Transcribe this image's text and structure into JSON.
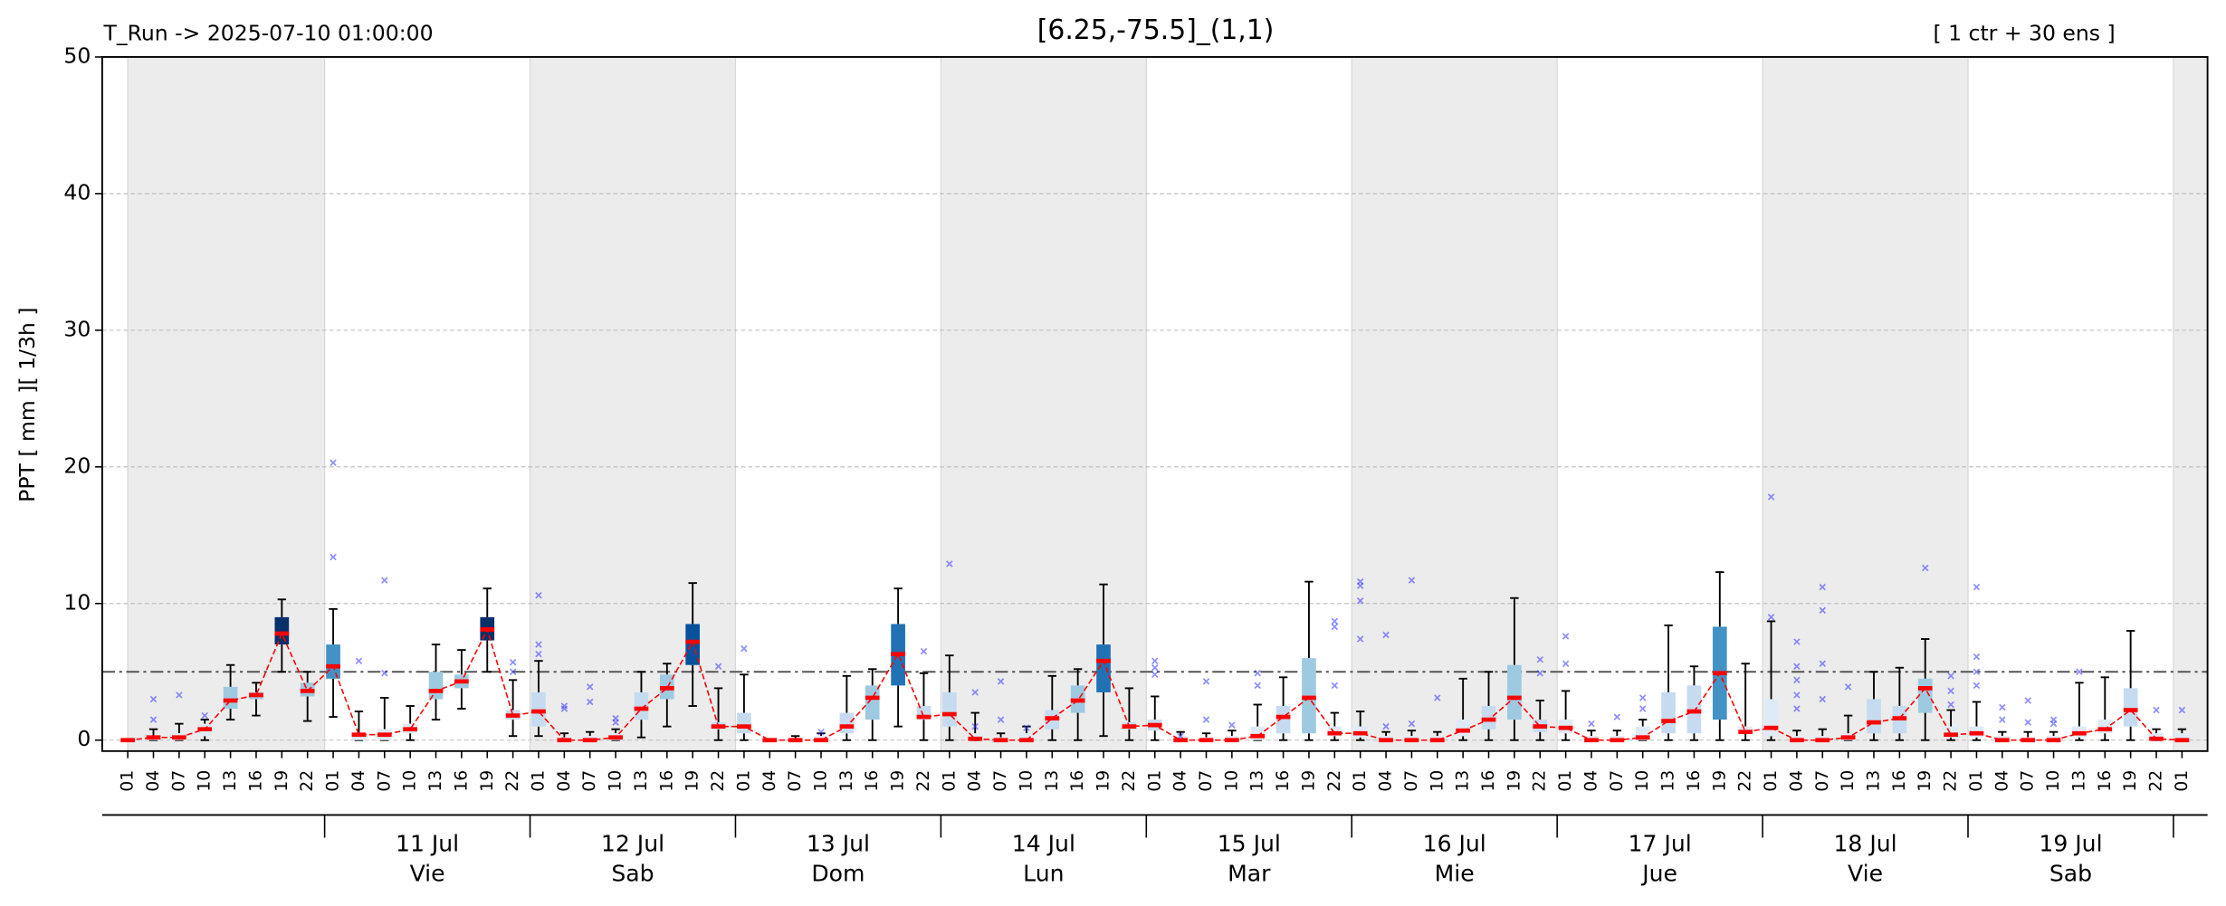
{
  "chart_data": {
    "type": "boxplot",
    "run_label": "T_Run -> 2025-07-10  01:00:00",
    "title": "[6.25,-75.5]_(1,1)",
    "members_label": "[ 1 ctr + 30 ens ]",
    "y_label": "PPT  [ mm ][ 1/3h ]",
    "ylim": [
      -0.8,
      50
    ],
    "yticks": [
      0,
      10,
      20,
      30,
      40,
      50
    ],
    "grid": true,
    "threshold": 5,
    "categories": [
      "01",
      "04",
      "07",
      "10",
      "13",
      "16",
      "19",
      "22",
      "01",
      "04",
      "07",
      "10",
      "13",
      "16",
      "19",
      "22",
      "01",
      "04",
      "07",
      "10",
      "13",
      "16",
      "19",
      "22",
      "01",
      "04",
      "07",
      "10",
      "13",
      "16",
      "19",
      "22",
      "01",
      "04",
      "07",
      "10",
      "13",
      "16",
      "19",
      "22",
      "01",
      "04",
      "07",
      "10",
      "13",
      "16",
      "19",
      "22",
      "01",
      "04",
      "07",
      "10",
      "13",
      "16",
      "19",
      "22",
      "01",
      "04",
      "07",
      "10",
      "13",
      "16",
      "19",
      "22",
      "01",
      "04",
      "07",
      "10",
      "13",
      "16",
      "19",
      "22",
      "01",
      "04",
      "07",
      "10",
      "13",
      "16",
      "19",
      "22",
      "01"
    ],
    "days": [
      null,
      {
        "date": "11 Jul",
        "weekday": "Vie"
      },
      {
        "date": "12 Jul",
        "weekday": "Sab"
      },
      {
        "date": "13 Jul",
        "weekday": "Dom"
      },
      {
        "date": "14 Jul",
        "weekday": "Lun"
      },
      {
        "date": "15 Jul",
        "weekday": "Mar"
      },
      {
        "date": "16 Jul",
        "weekday": "Mie"
      },
      {
        "date": "17 Jul",
        "weekday": "Jue"
      },
      {
        "date": "18 Jul",
        "weekday": "Vie"
      },
      {
        "date": "19 Jul",
        "weekday": "Sab"
      },
      null
    ],
    "median": [
      0,
      0.2,
      0.2,
      0.8,
      2.9,
      3.3,
      7.8,
      3.6,
      5.4,
      0.4,
      0.4,
      0.8,
      3.6,
      4.3,
      8.1,
      1.8,
      2.1,
      0,
      0,
      0.2,
      2.3,
      3.8,
      7.2,
      1,
      1,
      0,
      0,
      0,
      1,
      3.1,
      6.3,
      1.7,
      1.9,
      0.1,
      0,
      0,
      1.6,
      2.9,
      5.8,
      1,
      1.1,
      0,
      0,
      0,
      0.3,
      1.7,
      3.1,
      0.5,
      0.5,
      0,
      0,
      0,
      0.7,
      1.5,
      3.1,
      1,
      0.9,
      0,
      0,
      0.2,
      1.4,
      2.1,
      4.9,
      0.6,
      0.9,
      0,
      0,
      0.2,
      1.3,
      1.6,
      3.8,
      0.4,
      0.5,
      0,
      0,
      0,
      0.5,
      0.8,
      2.2,
      0.1,
      0
    ],
    "q1": [
      0,
      0,
      0,
      0.3,
      2.3,
      3,
      7,
      3.2,
      4.5,
      0,
      0,
      0.5,
      3,
      3.8,
      7.3,
      1.5,
      1,
      0,
      0,
      0,
      1.5,
      3,
      5.5,
      0.8,
      0.5,
      0,
      0,
      0,
      0.5,
      1.5,
      4,
      1.5,
      1,
      0,
      0,
      0,
      0.8,
      2,
      3.5,
      0.8,
      0.7,
      0,
      0,
      0,
      0,
      0.5,
      0.5,
      0.3,
      0.2,
      0,
      0,
      0,
      0.3,
      0.8,
      1.5,
      0.6,
      0.5,
      0,
      0,
      0,
      0.5,
      0.5,
      1.5,
      0.5,
      0.3,
      0,
      0,
      0,
      0.5,
      0.5,
      2,
      0.2,
      0.2,
      0,
      0,
      0,
      0.2,
      0.5,
      1,
      0,
      0
    ],
    "q3": [
      0,
      0.3,
      0.5,
      1.2,
      3.9,
      3.5,
      9,
      4.2,
      7,
      0.5,
      0.8,
      1.2,
      5,
      4.8,
      9,
      2.2,
      3.5,
      0.2,
      0.3,
      0.5,
      3.5,
      4.8,
      8.5,
      1.3,
      2,
      0,
      0.1,
      0.3,
      2,
      4,
      8.5,
      2.5,
      3.5,
      0.5,
      0.2,
      0.5,
      2.2,
      4,
      7,
      1.3,
      1.5,
      0.3,
      0.2,
      0.3,
      1,
      2.5,
      6,
      1,
      1,
      0.3,
      0.3,
      0.3,
      1.5,
      2.5,
      5.5,
      1.5,
      1.5,
      0.3,
      0.3,
      1,
      3.5,
      4,
      8.3,
      1,
      3,
      0.3,
      0.3,
      0.5,
      3,
      2.5,
      4.5,
      1,
      1,
      0.3,
      0.2,
      0.3,
      1,
      1.5,
      3.8,
      0.5,
      0.5
    ],
    "whisker_low": [
      0,
      0,
      0,
      0,
      1.5,
      1.8,
      5,
      1.4,
      1.7,
      0,
      0,
      0,
      1.5,
      2.3,
      5,
      0.3,
      0.3,
      0,
      0,
      0,
      0.2,
      1,
      2.5,
      0,
      0,
      0,
      0,
      0,
      0,
      0,
      1,
      0,
      0,
      0,
      0,
      0,
      0,
      0,
      0.3,
      0,
      0,
      0,
      0,
      0,
      0,
      0,
      0,
      0,
      0,
      0,
      0,
      0,
      0,
      0,
      0,
      0,
      0,
      0,
      0,
      0,
      0,
      0,
      0,
      0,
      0,
      0,
      0,
      0,
      0,
      0,
      0,
      0,
      0,
      0,
      0,
      0,
      0,
      0,
      0,
      0,
      0
    ],
    "whisker_high": [
      0,
      0.8,
      1.2,
      1.5,
      5.5,
      4.2,
      10.3,
      5,
      9.6,
      2.1,
      3.1,
      2.5,
      7,
      6.6,
      11.1,
      4.4,
      5.8,
      0.5,
      0.6,
      0.8,
      5,
      5.6,
      11.5,
      3.8,
      4.8,
      0,
      0.3,
      0.5,
      4.7,
      5.2,
      11.1,
      4.9,
      6.2,
      2,
      0.5,
      1,
      4.7,
      5.2,
      11.4,
      3.8,
      3.2,
      0.6,
      0.5,
      0.7,
      2.6,
      4.6,
      11.6,
      2,
      2.1,
      0.6,
      0.7,
      0.6,
      4.5,
      5,
      10.4,
      2.9,
      3.6,
      0.7,
      0.7,
      1.5,
      8.4,
      5.4,
      12.3,
      5.6,
      8.7,
      0.7,
      0.8,
      1.8,
      5,
      5.3,
      7.4,
      2.2,
      2.8,
      0.6,
      0.6,
      0.6,
      4.2,
      4.6,
      8,
      0.8,
      0.8
    ],
    "outliers": [
      [],
      [
        1.5,
        3
      ],
      [
        3.3
      ],
      [
        1.8
      ],
      [],
      [],
      [],
      [],
      [
        13.4,
        20.3
      ],
      [
        5.8
      ],
      [
        4.9,
        11.7
      ],
      [],
      [],
      [],
      [],
      [
        5,
        5.7
      ],
      [
        6.3,
        7,
        10.6
      ],
      [
        2.3,
        2.5
      ],
      [
        2.8,
        3.9
      ],
      [
        1.3,
        1.6
      ],
      [],
      [],
      [],
      [
        5.4
      ],
      [
        6.7
      ],
      [],
      [],
      [
        0.6
      ],
      [],
      [],
      [],
      [
        6.5
      ],
      [
        12.9
      ],
      [
        1,
        3.5
      ],
      [
        1.5,
        4.3
      ],
      [
        0.9
      ],
      [],
      [],
      [],
      [],
      [
        4.8,
        5.3,
        5.8
      ],
      [
        0.3
      ],
      [
        1.5,
        4.3
      ],
      [
        1.1
      ],
      [
        4,
        4.9
      ],
      [],
      [],
      [
        4,
        8.3,
        8.7
      ],
      [
        7.4,
        10.2,
        11.3,
        11.6
      ],
      [
        1,
        7.7
      ],
      [
        1.2,
        11.7
      ],
      [
        3.1
      ],
      [],
      [],
      [],
      [
        4.9,
        5.9
      ],
      [
        5.6,
        7.6
      ],
      [
        1.2
      ],
      [
        1.7
      ],
      [
        2.3,
        3.1
      ],
      [],
      [],
      [],
      [],
      [
        9,
        17.8
      ],
      [
        2.3,
        3.3,
        4.4,
        5.4,
        7.2
      ],
      [
        3,
        5.6,
        9.5,
        11.2
      ],
      [
        3.9
      ],
      [],
      [],
      [
        12.6
      ],
      [
        2.6,
        3.6,
        4.7
      ],
      [
        4,
        5,
        6.1,
        11.2
      ],
      [
        1.5,
        2.4
      ],
      [
        1.3,
        2.9
      ],
      [
        1.2,
        1.5
      ],
      [
        5
      ],
      [],
      [],
      [
        2.2
      ],
      [
        2.2
      ]
    ],
    "box_colors": [
      "#deebf7",
      "#deebf7",
      "#deebf7",
      "#deebf7",
      "#9ecae1",
      "#9ecae1",
      "#08306b",
      "#9ecae1",
      "#4292c6",
      "#deebf7",
      "#deebf7",
      "#deebf7",
      "#9ecae1",
      "#9ecae1",
      "#08306b",
      "#c6dbef",
      "#c6dbef",
      "#deebf7",
      "#deebf7",
      "#deebf7",
      "#c6dbef",
      "#9ecae1",
      "#08519c",
      "#c6dbef",
      "#c6dbef",
      "#deebf7",
      "#deebf7",
      "#deebf7",
      "#c6dbef",
      "#9ecae1",
      "#2171b5",
      "#c6dbef",
      "#c6dbef",
      "#deebf7",
      "#deebf7",
      "#deebf7",
      "#c6dbef",
      "#9ecae1",
      "#2171b5",
      "#c6dbef",
      "#c6dbef",
      "#deebf7",
      "#deebf7",
      "#deebf7",
      "#deebf7",
      "#c6dbef",
      "#9ecae1",
      "#deebf7",
      "#deebf7",
      "#deebf7",
      "#deebf7",
      "#deebf7",
      "#deebf7",
      "#c6dbef",
      "#9ecae1",
      "#c6dbef",
      "#deebf7",
      "#deebf7",
      "#deebf7",
      "#deebf7",
      "#c6dbef",
      "#c6dbef",
      "#4292c6",
      "#deebf7",
      "#deebf7",
      "#deebf7",
      "#deebf7",
      "#deebf7",
      "#c6dbef",
      "#c6dbef",
      "#9ecae1",
      "#deebf7",
      "#deebf7",
      "#deebf7",
      "#deebf7",
      "#deebf7",
      "#deebf7",
      "#deebf7",
      "#c6dbef",
      "#deebf7",
      "#deebf7"
    ],
    "median_color": "#ff0000",
    "outlier_color": "#3333ff",
    "threshold_color": "#555555",
    "night_color": "#ececec"
  }
}
